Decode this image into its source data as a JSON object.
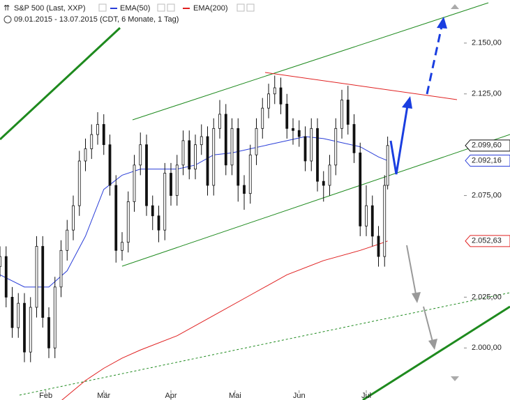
{
  "chart_data": {
    "type": "candlestick",
    "title": "S&P 500 (Last, XXP)",
    "subtitle": "09.01.2015 - 13.07.2015 (CDT, 6 Monate, 1 Tag)",
    "xlim": [
      0,
      152
    ],
    "xticks": [
      {
        "value": 15,
        "label": "Feb"
      },
      {
        "value": 34,
        "label": "Mär"
      },
      {
        "value": 56,
        "label": "Apr"
      },
      {
        "value": 77,
        "label": "Mai"
      },
      {
        "value": 98,
        "label": "Jun"
      },
      {
        "value": 120,
        "label": "Jul"
      }
    ],
    "ylim": [
      1974.4,
      2171.2
    ],
    "yticks": [
      {
        "value": 2000,
        "label": "2.000,00"
      },
      {
        "value": 2025,
        "label": "2.025,00"
      },
      {
        "value": 2075,
        "label": "2.075,00"
      },
      {
        "value": 2125,
        "label": "2.125,00"
      },
      {
        "value": 2150,
        "label": "2.150,00"
      }
    ],
    "color": "#111111",
    "x": [
      0,
      2,
      4,
      6,
      8,
      10,
      12,
      14,
      16,
      18,
      20,
      22,
      24,
      26,
      28,
      30,
      32,
      34,
      36,
      38,
      40,
      42,
      44,
      46,
      48,
      50,
      52,
      54,
      56,
      58,
      60,
      62,
      64,
      66,
      68,
      70,
      72,
      74,
      76,
      78,
      80,
      82,
      84,
      86,
      88,
      90,
      92,
      94,
      96,
      98,
      100,
      102,
      104,
      106,
      108,
      110,
      112,
      114,
      116,
      118,
      120,
      122,
      124,
      126,
      127
    ],
    "open": [
      2040,
      2045,
      2025,
      2010,
      2022,
      1998,
      2020,
      2050,
      2015,
      2000,
      2030,
      2048,
      2058,
      2070,
      2092,
      2098,
      2105,
      2110,
      2100,
      2080,
      2048,
      2052,
      2072,
      2090,
      2100,
      2070,
      2065,
      2058,
      2086,
      2075,
      2090,
      2102,
      2088,
      2100,
      2104,
      2080,
      2108,
      2115,
      2090,
      2108,
      2080,
      2076,
      2095,
      2108,
      2118,
      2125,
      2128,
      2120,
      2108,
      2107,
      2104,
      2092,
      2108,
      2082,
      2080,
      2090,
      2108,
      2122,
      2110,
      2096,
      2060,
      2070,
      2055,
      2045,
      2080
    ],
    "high": [
      2050,
      2050,
      2030,
      2027,
      2027,
      2025,
      2055,
      2055,
      2020,
      2035,
      2053,
      2063,
      2075,
      2097,
      2103,
      2110,
      2116,
      2115,
      2105,
      2085,
      2057,
      2077,
      2095,
      2106,
      2105,
      2075,
      2070,
      2091,
      2091,
      2095,
      2107,
      2107,
      2105,
      2110,
      2109,
      2113,
      2122,
      2120,
      2113,
      2113,
      2085,
      2100,
      2113,
      2123,
      2130,
      2134,
      2133,
      2125,
      2113,
      2112,
      2109,
      2113,
      2113,
      2087,
      2095,
      2113,
      2127,
      2129,
      2115,
      2101,
      2080,
      2075,
      2060,
      2085,
      2104
    ],
    "low": [
      2035,
      2020,
      2005,
      2005,
      1993,
      1993,
      2015,
      2010,
      1995,
      1995,
      2025,
      2043,
      2053,
      2065,
      2087,
      2093,
      2100,
      2095,
      2075,
      2042,
      2043,
      2047,
      2067,
      2085,
      2065,
      2058,
      2052,
      2053,
      2070,
      2070,
      2085,
      2083,
      2083,
      2095,
      2075,
      2075,
      2103,
      2085,
      2085,
      2072,
      2068,
      2071,
      2090,
      2103,
      2113,
      2120,
      2115,
      2103,
      2100,
      2099,
      2087,
      2087,
      2077,
      2072,
      2075,
      2085,
      2103,
      2105,
      2091,
      2055,
      2055,
      2050,
      2040,
      2040,
      2078
    ],
    "close": [
      2045,
      2025,
      2010,
      2022,
      1998,
      2020,
      2050,
      2015,
      2000,
      2030,
      2048,
      2058,
      2070,
      2092,
      2098,
      2105,
      2110,
      2100,
      2080,
      2048,
      2052,
      2072,
      2090,
      2100,
      2070,
      2065,
      2058,
      2086,
      2075,
      2090,
      2102,
      2088,
      2100,
      2104,
      2080,
      2108,
      2115,
      2090,
      2108,
      2080,
      2076,
      2095,
      2108,
      2118,
      2125,
      2128,
      2120,
      2108,
      2107,
      2104,
      2092,
      2108,
      2082,
      2080,
      2090,
      2108,
      2122,
      2110,
      2096,
      2060,
      2070,
      2055,
      2045,
      2080,
      2099.6
    ],
    "last_label": "2.099,60",
    "series": [
      {
        "name": "EMA(50)",
        "color": "#2a3ed8",
        "x": [
          0,
          8,
          16,
          22,
          28,
          34,
          40,
          46,
          52,
          58,
          64,
          70,
          76,
          82,
          88,
          94,
          100,
          106,
          112,
          118,
          124,
          127
        ],
        "values": [
          2036,
          2030,
          2030,
          2038,
          2055,
          2078,
          2085,
          2088,
          2088,
          2088,
          2090,
          2095,
          2096,
          2098,
          2100,
          2102,
          2104,
          2103,
          2101,
          2099,
          2094,
          2092.16
        ],
        "last_label": "2.092,16"
      },
      {
        "name": "EMA(200)",
        "color": "#e02020",
        "x": [
          20,
          28,
          34,
          40,
          46,
          58,
          70,
          82,
          94,
          106,
          118,
          124,
          127
        ],
        "values": [
          1974,
          1984,
          1990,
          1995,
          1999,
          2006,
          2016,
          2026,
          2036,
          2043,
          2048,
          2051,
          2052.63
        ],
        "last_label": "2.052,63"
      }
    ]
  }
}
